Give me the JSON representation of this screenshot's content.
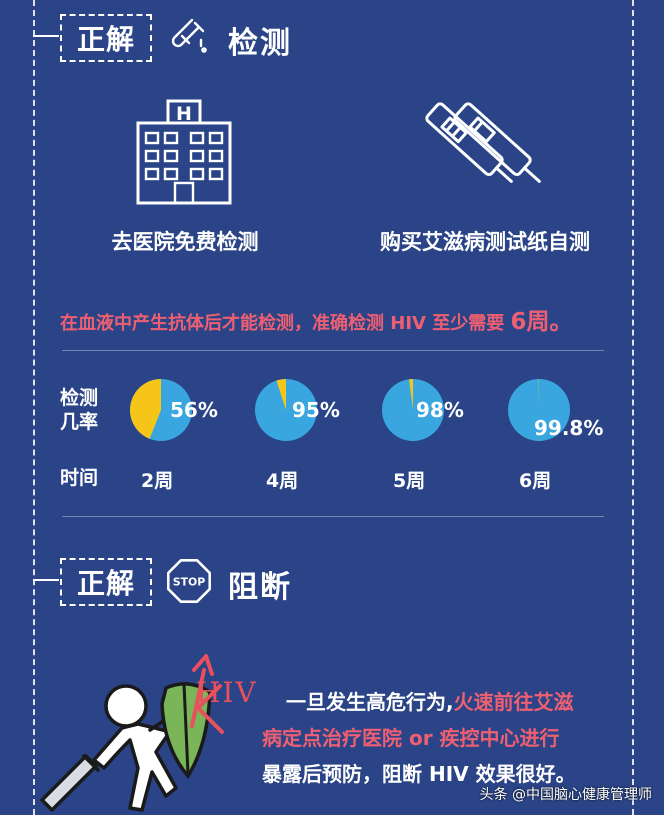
{
  "section1": {
    "tag": "正解",
    "title": "检测",
    "icon": "test-tube-icon"
  },
  "options": [
    {
      "icon": "hospital-icon",
      "label": "去医院免费检测"
    },
    {
      "icon": "test-strip-icon",
      "label": "购买艾滋病测试纸自测"
    }
  ],
  "note": {
    "text": "在血液中产生抗体后才能检测，准确检测 HIV 至少需要 ",
    "emph": "6周。"
  },
  "chart": {
    "row_label_1": "检测",
    "row_label_2": "几率",
    "time_label": "时间"
  },
  "chart_data": {
    "type": "pie",
    "categories": [
      "2周",
      "4周",
      "5周",
      "6周"
    ],
    "values": [
      56,
      95,
      98,
      99.8
    ],
    "value_labels": [
      "56%",
      "95%",
      "98%",
      "99.8%"
    ],
    "colors": {
      "detected": "#3aa6e0",
      "remaining": "#f5c518"
    }
  },
  "section2": {
    "tag": "正解",
    "title": "阻断",
    "icon": "stop-sign-icon",
    "stop_text": "STOP"
  },
  "block": {
    "hiv_tag": "HIV",
    "line1": "一旦发生高危行为,",
    "line1_pink": "火速前往艾滋",
    "line2": "病定点治疗医院 or 疾控中心进行",
    "line3": "暴露后预防，阻断 HIV 效果很好。"
  },
  "watermark": "头条 @中国脑心健康管理师"
}
